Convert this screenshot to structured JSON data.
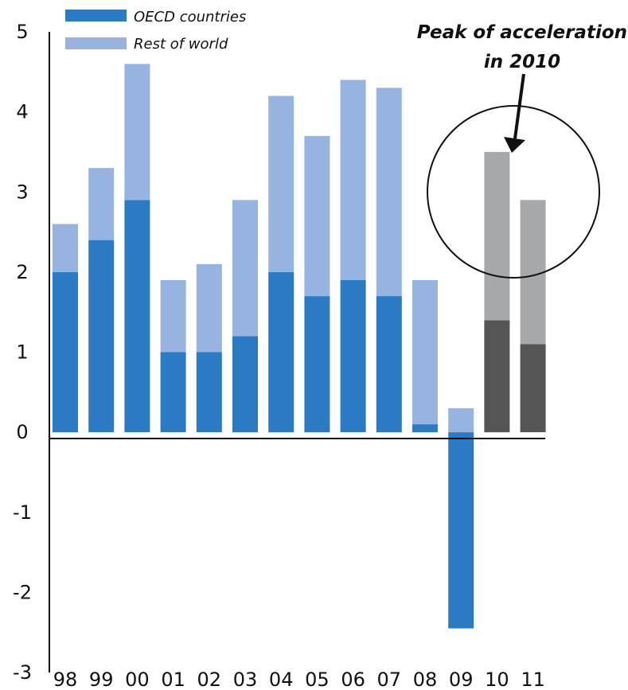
{
  "chart_data": {
    "type": "bar",
    "stacked": true,
    "title": "",
    "xlabel": "",
    "ylabel": "",
    "categories": [
      "98",
      "99",
      "00",
      "01",
      "02",
      "03",
      "04",
      "05",
      "06",
      "07",
      "08",
      "09",
      "10",
      "11"
    ],
    "series": [
      {
        "name": "OECD countries",
        "values": [
          2.0,
          2.4,
          2.9,
          1.0,
          1.0,
          1.2,
          2.0,
          1.7,
          1.9,
          1.7,
          0.1,
          -2.45,
          1.4,
          1.1
        ],
        "color": "#2B7BC4",
        "projection_color": "#555555"
      },
      {
        "name": "Rest of world",
        "values": [
          0.6,
          0.9,
          1.7,
          0.9,
          1.1,
          1.7,
          2.2,
          2.0,
          2.5,
          2.6,
          1.8,
          0.3,
          2.1,
          1.8
        ],
        "color": "#97B4E0",
        "projection_color": "#A7A8AA"
      }
    ],
    "projection_categories": [
      "10",
      "11"
    ],
    "ylim": [
      -3,
      5
    ],
    "yticks": [
      "5",
      "4",
      "3",
      "2",
      "1",
      "0",
      "-1",
      "-2",
      "-3"
    ],
    "grid": false,
    "legend_position": "top-left",
    "annotation": {
      "lines": [
        "Peak of acceleration",
        "in 2010"
      ],
      "target_category": "10"
    }
  }
}
